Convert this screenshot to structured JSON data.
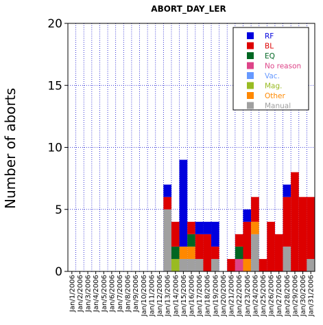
{
  "chart_data": {
    "type": "bar",
    "stacked": true,
    "title": "ABORT_DAY_LER",
    "ylabel": "Number of aborts",
    "xlabel": "",
    "ylim": [
      0,
      20
    ],
    "yticks": [
      0,
      5,
      10,
      15,
      20
    ],
    "grid": true,
    "legend_position": "top-right",
    "categories": [
      "Jan/1/2006",
      "Jan/2/2006",
      "Jan/3/2006",
      "Jan/4/2006",
      "Jan/5/2006",
      "Jan/6/2006",
      "Jan/7/2006",
      "Jan/8/2006",
      "Jan/9/2006",
      "Jan/10/2006",
      "Jan/11/2006",
      "Jan/12/2006",
      "Jan/13/2006",
      "Jan/14/2006",
      "Jan/15/2006",
      "Jan/16/2006",
      "Jan/17/2006",
      "Jan/18/2006",
      "Jan/19/2006",
      "Jan/20/2006",
      "Jan/21/2006",
      "Jan/22/2006",
      "Jan/23/2006",
      "Jan/24/2006",
      "Jan/25/2006",
      "Jan/26/2006",
      "Jan/27/2006",
      "Jan/28/2006",
      "Jan/29/2006",
      "Jan/30/2006",
      "Jan/31/2006"
    ],
    "series": [
      {
        "name": "Manual",
        "color": "#a0a0a0",
        "values": [
          0,
          0,
          0,
          0,
          0,
          0,
          0,
          0,
          0,
          0,
          0,
          0,
          5,
          0,
          1,
          1,
          1,
          0,
          1,
          0,
          0,
          0,
          0,
          3,
          0,
          0,
          0,
          2,
          0,
          0,
          1
        ]
      },
      {
        "name": "Mag.",
        "color": "#99bb22",
        "values": [
          0,
          0,
          0,
          0,
          0,
          0,
          0,
          0,
          0,
          0,
          0,
          0,
          0,
          1,
          0,
          0,
          0,
          0,
          0,
          0,
          0,
          0,
          0,
          0,
          0,
          0,
          0,
          0,
          0,
          0,
          0
        ]
      },
      {
        "name": "Vac.",
        "color": "#6699ff",
        "values": [
          0,
          0,
          0,
          0,
          0,
          0,
          0,
          0,
          0,
          0,
          0,
          0,
          0,
          0,
          0,
          0,
          0,
          0,
          0,
          0,
          0,
          0,
          0,
          0,
          0,
          0,
          0,
          0,
          0,
          0,
          0
        ]
      },
      {
        "name": "No reason",
        "color": "#dd4488",
        "values": [
          0,
          0,
          0,
          0,
          0,
          0,
          0,
          0,
          0,
          0,
          0,
          0,
          0,
          0,
          0,
          0,
          0,
          0,
          0,
          0,
          0,
          1,
          0,
          0,
          0,
          0,
          0,
          0,
          0,
          0,
          0
        ]
      },
      {
        "name": "Other",
        "color": "#ff8800",
        "values": [
          0,
          0,
          0,
          0,
          0,
          0,
          0,
          0,
          0,
          0,
          0,
          0,
          0,
          0,
          1,
          1,
          0,
          0,
          0,
          0,
          0,
          0,
          1,
          1,
          0,
          0,
          0,
          0,
          0,
          0,
          0
        ]
      },
      {
        "name": "EQ",
        "color": "#006622",
        "values": [
          0,
          0,
          0,
          0,
          0,
          0,
          0,
          0,
          0,
          0,
          0,
          0,
          0,
          1,
          0,
          1,
          0,
          0,
          0,
          0,
          0,
          1,
          0,
          0,
          0,
          0,
          0,
          0,
          0,
          0,
          0
        ]
      },
      {
        "name": "BL",
        "color": "#dd0000",
        "values": [
          0,
          0,
          0,
          0,
          0,
          0,
          0,
          0,
          0,
          0,
          0,
          0,
          1,
          2,
          0,
          1,
          2,
          3,
          1,
          0,
          1,
          1,
          3,
          2,
          1,
          4,
          3,
          4,
          8,
          6,
          5
        ]
      },
      {
        "name": "RF",
        "color": "#0000dd",
        "values": [
          0,
          0,
          0,
          0,
          0,
          0,
          0,
          0,
          0,
          0,
          0,
          0,
          1,
          0,
          7,
          0,
          1,
          1,
          2,
          0,
          0,
          0,
          1,
          0,
          0,
          0,
          0,
          1,
          0,
          0,
          0
        ]
      }
    ],
    "legend_order": [
      "RF",
      "BL",
      "EQ",
      "No reason",
      "Vac.",
      "Mag.",
      "Other",
      "Manual"
    ]
  },
  "colors": {
    "grid": "#0000cc",
    "axis": "#000000",
    "background": "#ffffff"
  }
}
